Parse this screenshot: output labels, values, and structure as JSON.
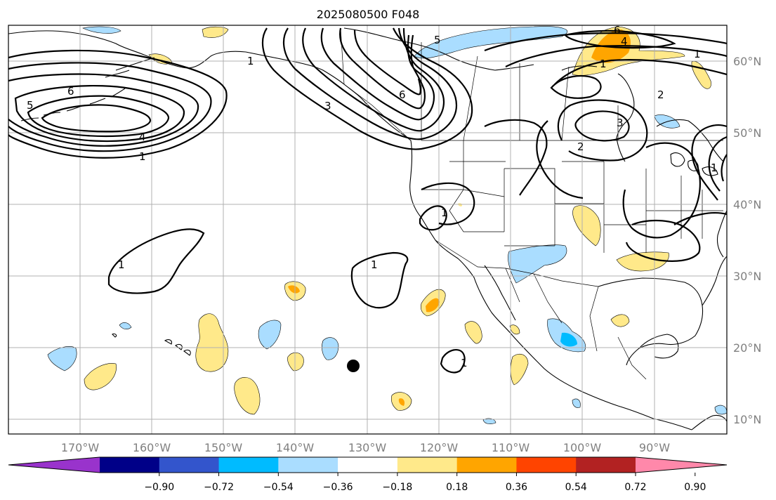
{
  "title": "2025080500 F048",
  "latitude_labels": [
    "60°N",
    "50°N",
    "40°N",
    "30°N",
    "20°N",
    "10°N"
  ],
  "longitude_labels": [
    "170°W",
    "160°W",
    "150°W",
    "140°W",
    "130°W",
    "120°W",
    "110°W",
    "100°W",
    "90°W"
  ],
  "colorbar": {
    "tick_labels": [
      "−0.90",
      "−0.72",
      "−0.54",
      "−0.36",
      "−0.18",
      "0.18",
      "0.36",
      "0.54",
      "0.72",
      "0.90"
    ],
    "colors": [
      "#9933cc",
      "#000088",
      "#3355cc",
      "#00bbff",
      "#aaddff",
      "#ffffff",
      "#ffe98a",
      "#ffa500",
      "#ff4400",
      "#b22222",
      "#ff88aa"
    ]
  },
  "contour_labels": {
    "aleutian_low": [
      "5",
      "6",
      "4",
      "1"
    ],
    "alaska_gulf": [
      "1",
      "3",
      "5",
      "6"
    ],
    "pacific_center": [
      "1"
    ],
    "pacific_east": [
      "1"
    ],
    "baja": [
      "1"
    ],
    "mexico_pacific": [
      "1"
    ],
    "canada_east": [
      "6",
      "4",
      "1",
      "1",
      "2"
    ],
    "great_lakes": [
      "3",
      "2",
      "1"
    ]
  },
  "marker": "black-dot"
}
